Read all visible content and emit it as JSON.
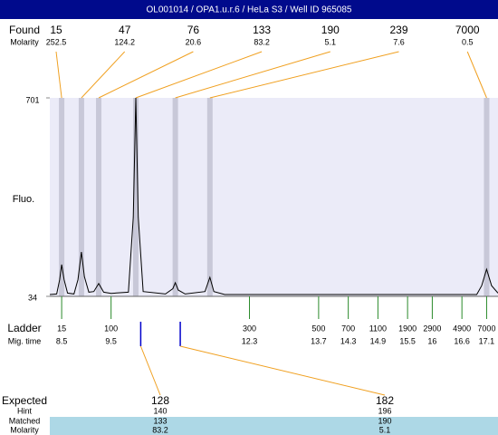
{
  "chart_data": {
    "type": "electropherogram",
    "title": "OL001014 / OPA1.u.r.6 / HeLa S3 / Well ID 965085",
    "found": {
      "label": "Found",
      "molarity_label": "Molarity",
      "sizes": [
        15,
        47,
        76,
        133,
        190,
        239,
        7000
      ],
      "molarities": [
        252.5,
        124.2,
        20.6,
        83.2,
        5.1,
        7.6,
        0.5
      ],
      "times": [
        8.5,
        8.9,
        9.25,
        10.0,
        10.8,
        11.5,
        17.1
      ]
    },
    "y_label": "Fluo.",
    "ylim": [
      34,
      701
    ],
    "yticks": [
      34,
      701
    ],
    "xlim": [
      8.26,
      17.33
    ],
    "trace": {
      "x": [
        8.26,
        8.4,
        8.46,
        8.5,
        8.55,
        8.62,
        8.75,
        8.83,
        8.9,
        8.96,
        9.05,
        9.15,
        9.25,
        9.35,
        9.5,
        9.85,
        9.95,
        10.0,
        10.05,
        10.15,
        10.6,
        10.75,
        10.8,
        10.86,
        11.0,
        11.4,
        11.5,
        11.58,
        11.8,
        16.9,
        17.0,
        17.1,
        17.2,
        17.33
      ],
      "values": [
        40,
        42,
        90,
        141,
        90,
        45,
        42,
        90,
        183,
        100,
        48,
        50,
        77,
        48,
        44,
        48,
        300,
        701,
        300,
        50,
        42,
        60,
        80,
        55,
        42,
        50,
        98,
        50,
        40,
        40,
        70,
        125,
        70,
        45
      ]
    },
    "ladder": {
      "label": "Ladder",
      "mig_label": "Mig. time",
      "sizes": [
        15,
        100,
        300,
        500,
        700,
        1100,
        1900,
        2900,
        4900,
        7000
      ],
      "times": [
        8.5,
        9.5,
        12.3,
        13.7,
        14.3,
        14.9,
        15.5,
        16,
        16.6,
        17.1
      ]
    },
    "expected": {
      "label": "Expected",
      "hint_label": "Hint",
      "matched_label": "Matched",
      "molarity_label": "Molarity",
      "sizes": [
        128,
        182
      ],
      "hints": [
        140,
        196
      ],
      "matched": [
        133,
        190
      ],
      "molarities": [
        83.2,
        5.1
      ],
      "times": [
        10.1,
        10.9
      ]
    }
  }
}
